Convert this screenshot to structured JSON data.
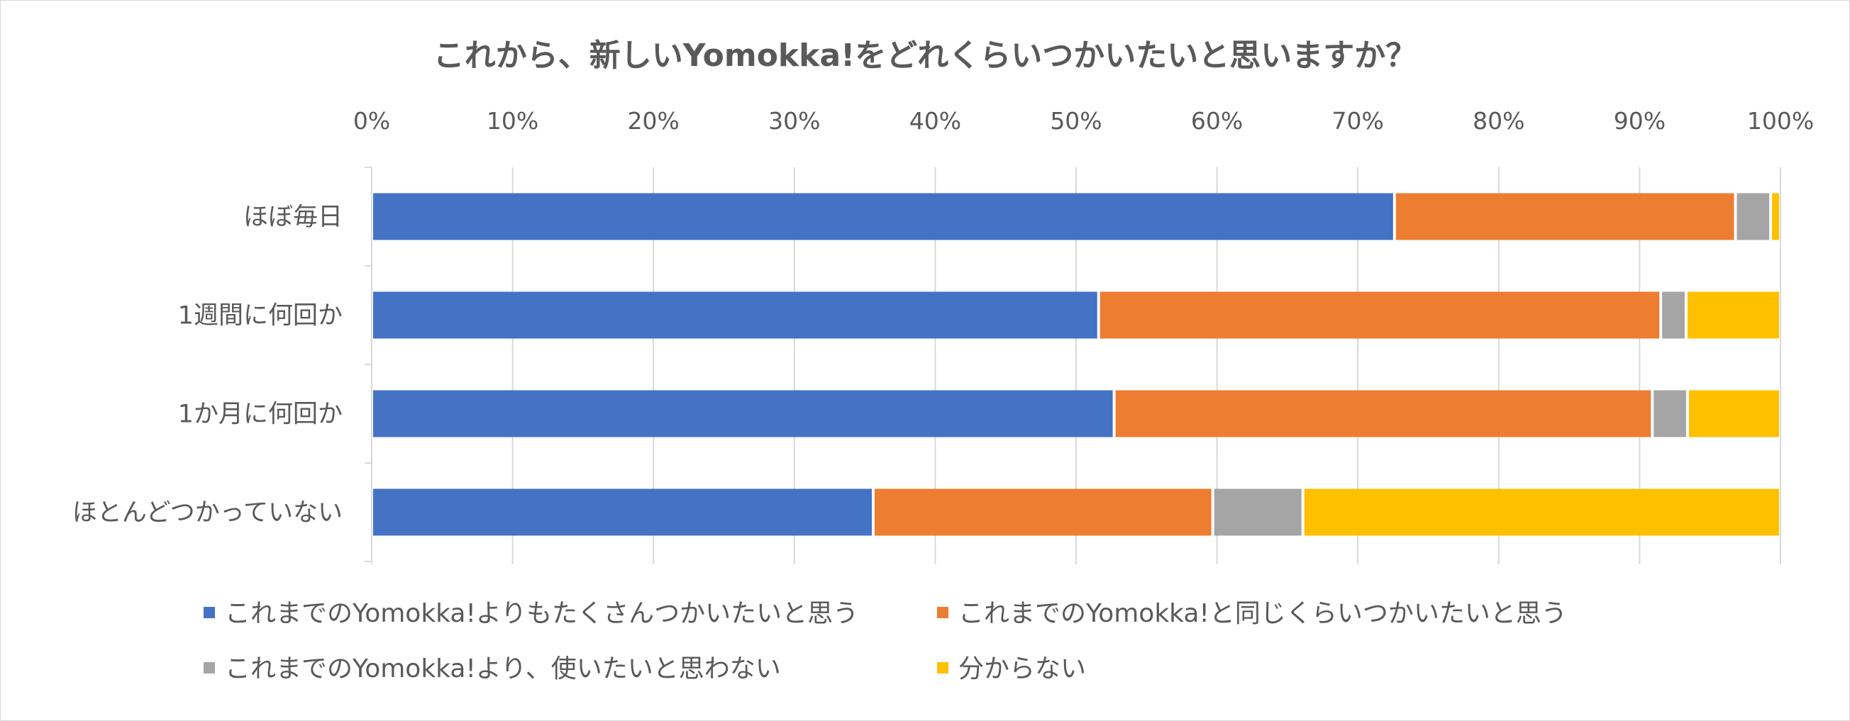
{
  "chart_data": {
    "type": "bar",
    "orientation": "horizontal",
    "stacked": "percent",
    "title": "これから、新しいYomokka!をどれくらいつかいたいと思いますか？",
    "x_axis_position": "top",
    "xlim": [
      0,
      100
    ],
    "x_ticks": [
      "0%",
      "10%",
      "20%",
      "30%",
      "40%",
      "50%",
      "60%",
      "70%",
      "80%",
      "90%",
      "100%"
    ],
    "grid": true,
    "legend_position": "bottom",
    "categories": [
      "ほぼ毎日",
      "1週間に何回か",
      "1か月に何回か",
      "ほとんどつかっていない"
    ],
    "series": [
      {
        "name": "これまでのYomokka!よりもたくさんつかいたいと思う",
        "color": "#4472C4",
        "values": [
          72.6,
          51.6,
          52.7,
          35.6
        ]
      },
      {
        "name": "これまでのYomokka!と同じくらいつかいたいと思う",
        "color": "#ED7D31",
        "values": [
          24.2,
          39.9,
          38.2,
          24.1
        ]
      },
      {
        "name": "これまでのYomokka!より、使いたいと思わない",
        "color": "#A5A5A5",
        "values": [
          2.5,
          1.8,
          2.5,
          6.4
        ]
      },
      {
        "name": "分からない",
        "color": "#FFC000",
        "values": [
          0.7,
          6.7,
          6.6,
          33.9
        ]
      }
    ]
  }
}
